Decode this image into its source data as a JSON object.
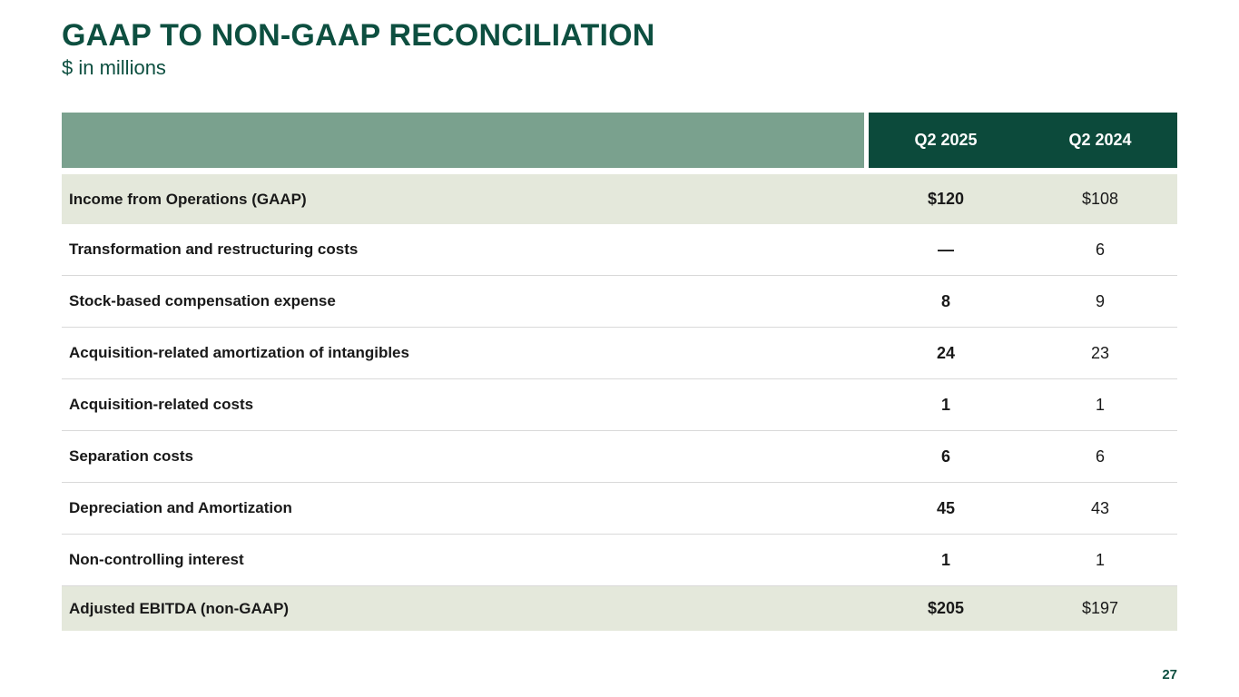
{
  "slide": {
    "title": "GAAP TO NON-GAAP RECONCILIATION",
    "subtitle": "$ in millions",
    "page_number": "27"
  },
  "table": {
    "columns": [
      "Q2 2025",
      "Q2 2024"
    ],
    "rows": [
      {
        "label": "Income from Operations (GAAP)",
        "values": [
          "$120",
          "$108"
        ],
        "highlight": true
      },
      {
        "label": "Transformation and restructuring costs",
        "values": [
          "—",
          "6"
        ],
        "highlight": false
      },
      {
        "label": "Stock-based compensation expense",
        "values": [
          "8",
          "9"
        ],
        "highlight": false
      },
      {
        "label": "Acquisition-related amortization of intangibles",
        "values": [
          "24",
          "23"
        ],
        "highlight": false
      },
      {
        "label": "Acquisition-related costs",
        "values": [
          "1",
          "1"
        ],
        "highlight": false
      },
      {
        "label": "Separation costs",
        "values": [
          "6",
          "6"
        ],
        "highlight": false
      },
      {
        "label": "Depreciation and Amortization",
        "values": [
          "45",
          "43"
        ],
        "highlight": false
      },
      {
        "label": "Non-controlling interest",
        "values": [
          "1",
          "1"
        ],
        "highlight": false
      },
      {
        "label": "Adjusted EBITDA (non-GAAP)",
        "values": [
          "$205",
          "$197"
        ],
        "highlight": true
      }
    ]
  },
  "chart_data": {
    "type": "table",
    "title": "GAAP TO NON-GAAP RECONCILIATION ($ in millions)",
    "columns": [
      "",
      "Q2 2025",
      "Q2 2024"
    ],
    "rows": [
      [
        "Income from Operations (GAAP)",
        "$120",
        "$108"
      ],
      [
        "Transformation and restructuring costs",
        "—",
        "6"
      ],
      [
        "Stock-based compensation expense",
        "8",
        "9"
      ],
      [
        "Acquisition-related amortization of intangibles",
        "24",
        "23"
      ],
      [
        "Acquisition-related costs",
        "1",
        "1"
      ],
      [
        "Separation costs",
        "6",
        "6"
      ],
      [
        "Depreciation and Amortization",
        "45",
        "43"
      ],
      [
        "Non-controlling interest",
        "1",
        "1"
      ],
      [
        "Adjusted EBITDA (non-GAAP)",
        "$205",
        "$197"
      ]
    ]
  },
  "colors": {
    "title_green": "#0d4f40",
    "header_dark_green": "#0c4a3b",
    "header_sage": "#7aa18e",
    "row_highlight": "#e4e8db",
    "divider": "#d9d9d9",
    "text_dark": "#191919"
  }
}
